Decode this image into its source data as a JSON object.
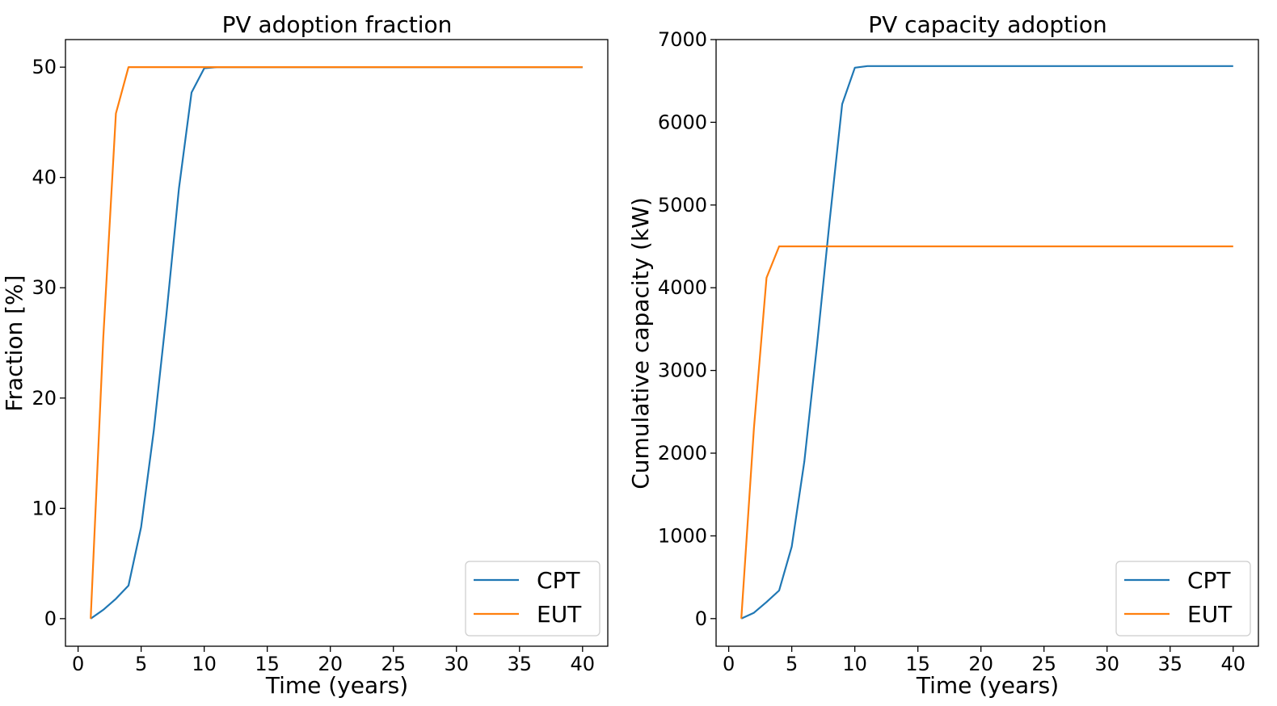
{
  "colors": {
    "CPT": "#1f77b4",
    "EUT": "#ff7f0e"
  },
  "chart_data": [
    {
      "type": "line",
      "title": "PV adoption fraction",
      "xlabel": "Time (years)",
      "ylabel": "Fraction [%]",
      "xlim": [
        -1,
        42
      ],
      "ylim": [
        -2.5,
        52.5
      ],
      "xticks": [
        0,
        5,
        10,
        15,
        20,
        25,
        30,
        35,
        40
      ],
      "yticks": [
        0,
        10,
        20,
        30,
        40,
        50
      ],
      "legend_position": "lower-right",
      "series": [
        {
          "name": "CPT",
          "color": "#1f77b4",
          "x": [
            1,
            2,
            3,
            4,
            5,
            6,
            7,
            8,
            9,
            10,
            11,
            12,
            13,
            14,
            15,
            16,
            17,
            18,
            19,
            20,
            21,
            22,
            23,
            24,
            25,
            26,
            27,
            28,
            29,
            30,
            31,
            32,
            33,
            34,
            35,
            36,
            37,
            38,
            39,
            40
          ],
          "y": [
            0,
            0.8,
            1.8,
            3.0,
            8.3,
            17.0,
            27.5,
            39.0,
            47.7,
            49.9,
            50,
            50,
            50,
            50,
            50,
            50,
            50,
            50,
            50,
            50,
            50,
            50,
            50,
            50,
            50,
            50,
            50,
            50,
            50,
            50,
            50,
            50,
            50,
            50,
            50,
            50,
            50,
            50,
            50,
            50
          ]
        },
        {
          "name": "EUT",
          "color": "#ff7f0e",
          "x": [
            1,
            2,
            3,
            4,
            5,
            6,
            7,
            8,
            9,
            10,
            11,
            12,
            13,
            14,
            15,
            16,
            17,
            18,
            19,
            20,
            21,
            22,
            23,
            24,
            25,
            26,
            27,
            28,
            29,
            30,
            31,
            32,
            33,
            34,
            35,
            36,
            37,
            38,
            39,
            40
          ],
          "y": [
            0,
            25.5,
            45.8,
            50,
            50,
            50,
            50,
            50,
            50,
            50,
            50,
            50,
            50,
            50,
            50,
            50,
            50,
            50,
            50,
            50,
            50,
            50,
            50,
            50,
            50,
            50,
            50,
            50,
            50,
            50,
            50,
            50,
            50,
            50,
            50,
            50,
            50,
            50,
            50,
            50
          ]
        }
      ]
    },
    {
      "type": "line",
      "title": "PV capacity adoption",
      "xlabel": "Time (years)",
      "ylabel": "Cumulative capacity (kW)",
      "xlim": [
        -1,
        42
      ],
      "ylim": [
        -334,
        7000
      ],
      "xticks": [
        0,
        5,
        10,
        15,
        20,
        25,
        30,
        35,
        40
      ],
      "yticks": [
        0,
        1000,
        2000,
        3000,
        4000,
        5000,
        6000,
        7000
      ],
      "legend_position": "lower-right",
      "series": [
        {
          "name": "CPT",
          "color": "#1f77b4",
          "x": [
            1,
            2,
            3,
            4,
            5,
            6,
            7,
            8,
            9,
            10,
            11,
            12,
            13,
            14,
            15,
            16,
            17,
            18,
            19,
            20,
            21,
            22,
            23,
            24,
            25,
            26,
            27,
            28,
            29,
            30,
            31,
            32,
            33,
            34,
            35,
            36,
            37,
            38,
            39,
            40
          ],
          "y": [
            0,
            70,
            200,
            340,
            870,
            1900,
            3300,
            4800,
            6220,
            6660,
            6680,
            6680,
            6680,
            6680,
            6680,
            6680,
            6680,
            6680,
            6680,
            6680,
            6680,
            6680,
            6680,
            6680,
            6680,
            6680,
            6680,
            6680,
            6680,
            6680,
            6680,
            6680,
            6680,
            6680,
            6680,
            6680,
            6680,
            6680,
            6680,
            6680
          ]
        },
        {
          "name": "EUT",
          "color": "#ff7f0e",
          "x": [
            1,
            2,
            3,
            4,
            5,
            6,
            7,
            8,
            9,
            10,
            11,
            12,
            13,
            14,
            15,
            16,
            17,
            18,
            19,
            20,
            21,
            22,
            23,
            24,
            25,
            26,
            27,
            28,
            29,
            30,
            31,
            32,
            33,
            34,
            35,
            36,
            37,
            38,
            39,
            40
          ],
          "y": [
            0,
            2300,
            4120,
            4500,
            4500,
            4500,
            4500,
            4500,
            4500,
            4500,
            4500,
            4500,
            4500,
            4500,
            4500,
            4500,
            4500,
            4500,
            4500,
            4500,
            4500,
            4500,
            4500,
            4500,
            4500,
            4500,
            4500,
            4500,
            4500,
            4500,
            4500,
            4500,
            4500,
            4500,
            4500,
            4500,
            4500,
            4500,
            4500,
            4500
          ]
        }
      ]
    }
  ]
}
